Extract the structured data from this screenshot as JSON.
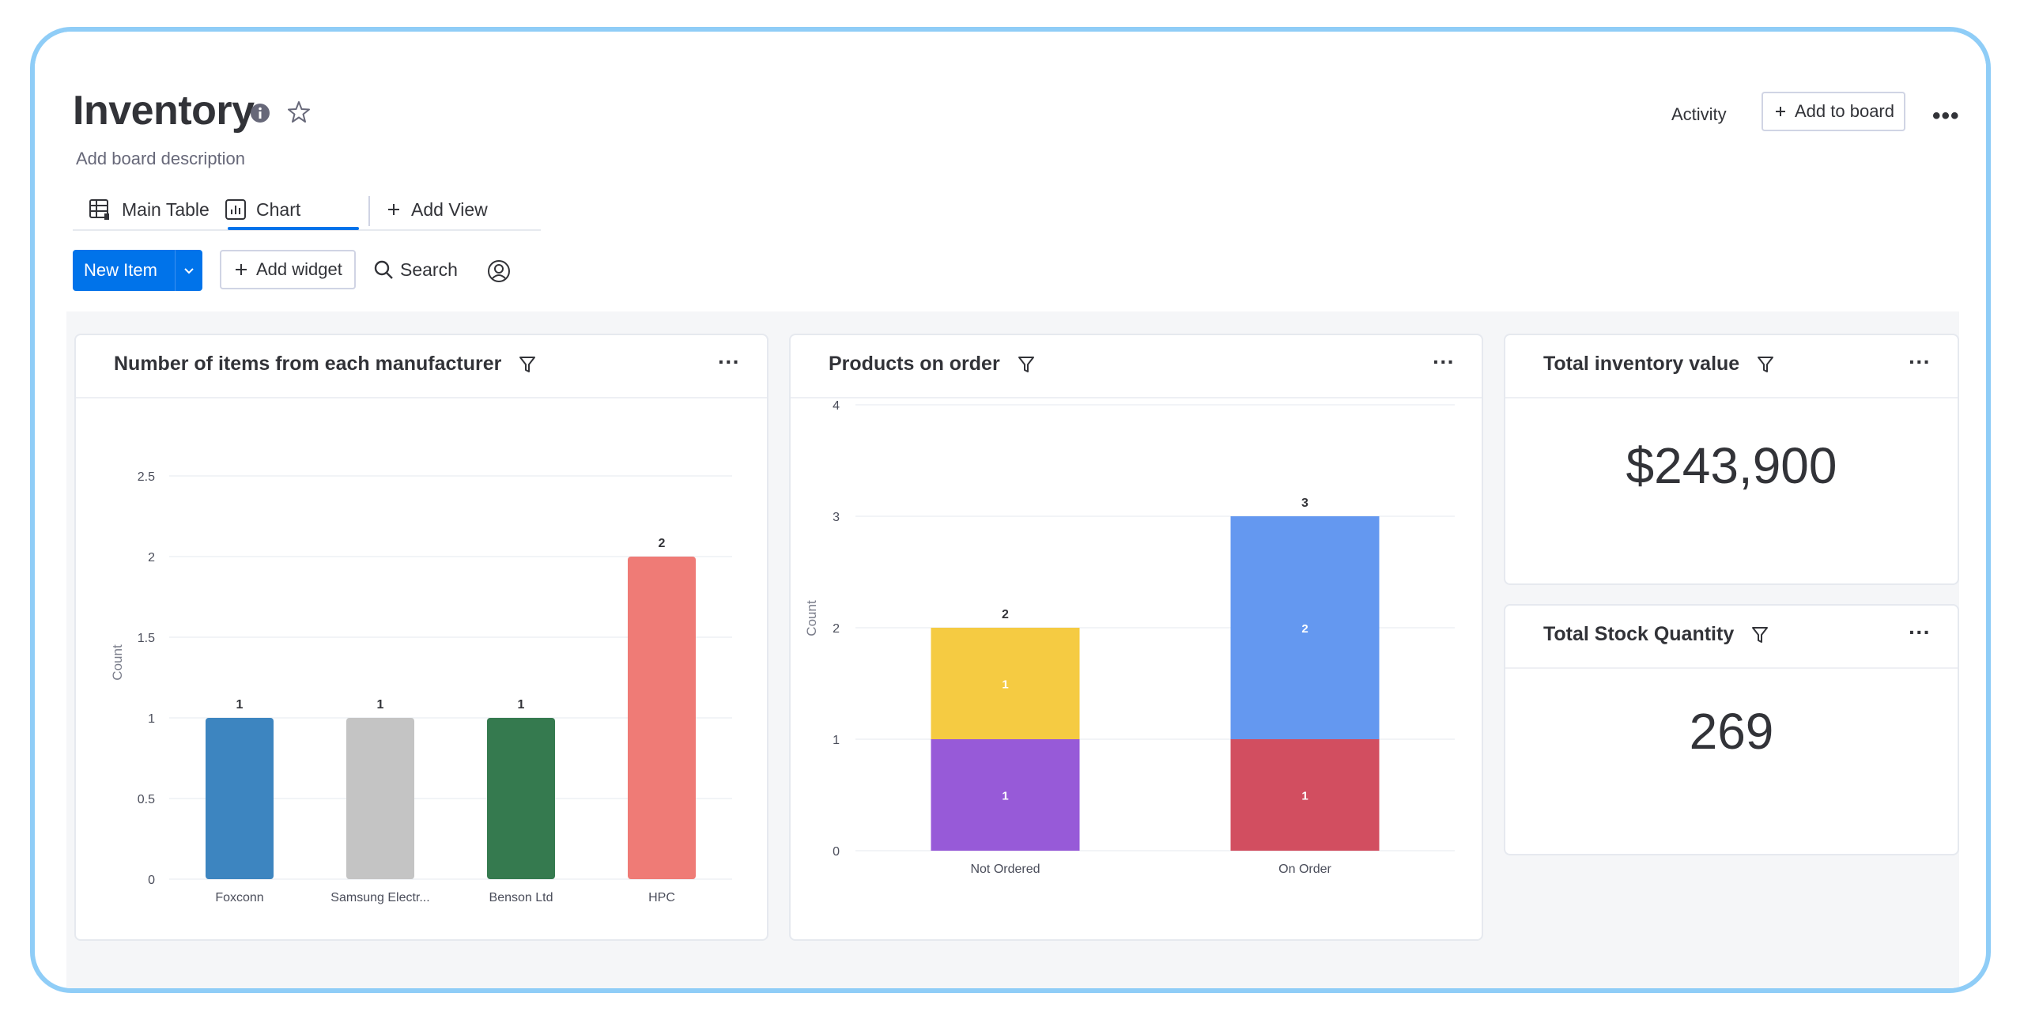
{
  "board": {
    "title": "Inventory",
    "description": "Add board description",
    "tabs": [
      {
        "label": "Main Table",
        "icon": "table-icon"
      },
      {
        "label": "Chart",
        "icon": "chart-icon",
        "active": true
      },
      {
        "label": "Add View",
        "icon": "plus-icon"
      }
    ],
    "toolbar": {
      "new_item": "New Item",
      "add_widget": "Add widget",
      "search": "Search"
    },
    "header_right": {
      "activity": "Activity",
      "add_to_board": "Add to board"
    }
  },
  "widgets": {
    "manufacturer": {
      "title": "Number of items from each manufacturer",
      "ylabel": "Count"
    },
    "on_order": {
      "title": "Products on order",
      "ylabel": "Count"
    },
    "inventory_value": {
      "title": "Total inventory value",
      "value": "$243,900"
    },
    "stock_qty": {
      "title": "Total Stock Quantity",
      "value": "269"
    }
  },
  "colors": {
    "accent": "#0073ea",
    "frame": "#8fcdf7"
  },
  "chart_data": [
    {
      "type": "bar",
      "title": "Number of items from each manufacturer",
      "ylabel": "Count",
      "categories": [
        "Foxconn",
        "Samsung Electr...",
        "Benson Ltd",
        "HPC"
      ],
      "values": [
        1,
        1,
        1,
        2
      ],
      "colors": [
        "#3d85c0",
        "#c4c4c4",
        "#357a4f",
        "#ef7b76"
      ],
      "ylim": [
        0,
        2.5
      ],
      "yticks": [
        "0",
        "0.5",
        "1",
        "1.5",
        "2",
        "2.5"
      ],
      "grid": true
    },
    {
      "type": "bar",
      "stacked": true,
      "title": "Products on order",
      "ylabel": "Count",
      "categories": [
        "Not Ordered",
        "On Order"
      ],
      "segments": [
        [
          {
            "value": 1,
            "color": "#975ad8"
          },
          {
            "value": 1,
            "color": "#f5cb42"
          }
        ],
        [
          {
            "value": 1,
            "color": "#d24e60"
          },
          {
            "value": 2,
            "color": "#6498f0"
          }
        ]
      ],
      "totals": [
        2,
        3
      ],
      "ylim": [
        0,
        4
      ],
      "yticks": [
        "0",
        "1",
        "2",
        "3",
        "4"
      ],
      "grid": true
    }
  ]
}
